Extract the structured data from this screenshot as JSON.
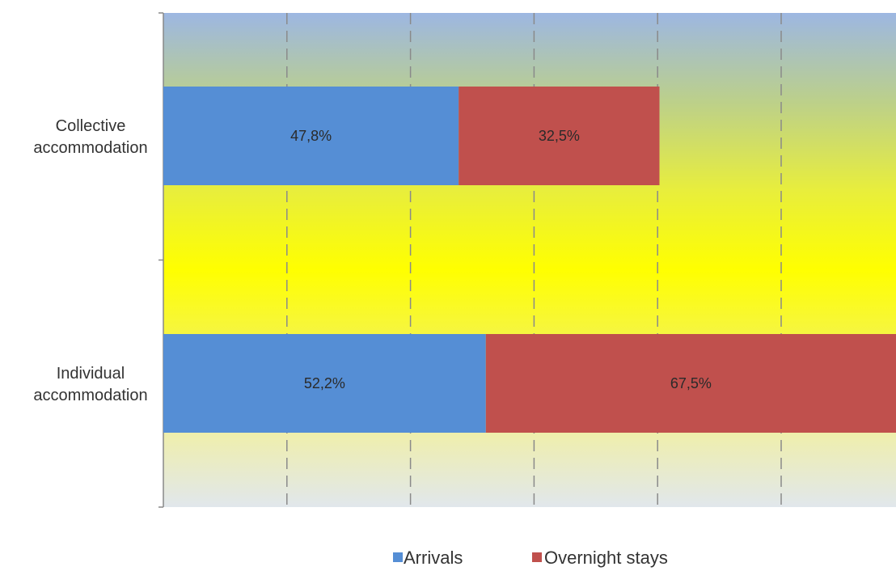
{
  "chart_data": {
    "type": "bar",
    "orientation": "horizontal",
    "stacked": true,
    "categories": [
      "Collective accommodation",
      "Individual accommodation"
    ],
    "category_lines": [
      [
        "Collective",
        "accommodation"
      ],
      [
        "Individual",
        "accommodation"
      ]
    ],
    "series": [
      {
        "name": "Arrivals",
        "color": "#558ED5",
        "values": [
          47.8,
          52.2
        ],
        "labels": [
          "47,8%",
          "52,2%"
        ]
      },
      {
        "name": "Overnight stays",
        "color": "#C0504D",
        "values": [
          32.5,
          67.5
        ],
        "labels": [
          "32,5%",
          "67,5%"
        ]
      }
    ],
    "xlim": [
      0,
      120
    ],
    "x_gridlines": [
      20,
      40,
      60,
      80,
      100
    ],
    "grid": "vertical dashed",
    "legend": "bottom",
    "background": "vertical gradient blue-green-yellow-gray"
  }
}
